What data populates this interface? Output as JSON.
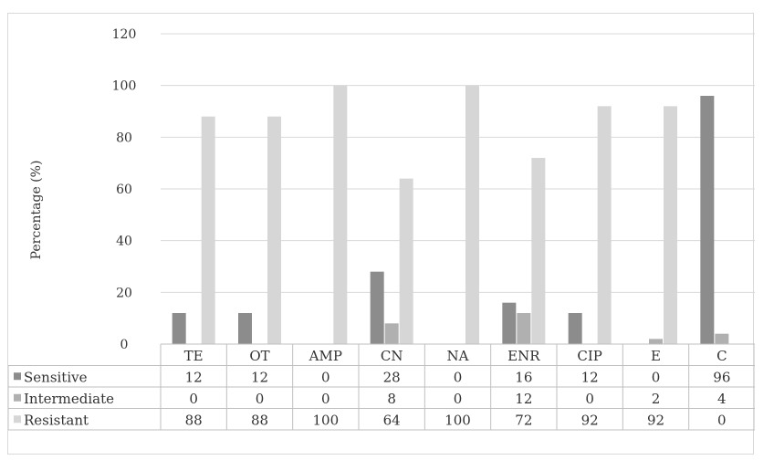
{
  "chart_data": {
    "type": "bar",
    "title": "",
    "xlabel": "",
    "ylabel": "Percentage (%)",
    "ylim": [
      0,
      120
    ],
    "yticks": [
      0,
      20,
      40,
      60,
      80,
      100,
      120
    ],
    "grid": true,
    "legend": "data-table-left",
    "categories": [
      "TE",
      "OT",
      "AMP",
      "CN",
      "NA",
      "ENR",
      "CIP",
      "E",
      "C"
    ],
    "series": [
      {
        "name": "Sensitive",
        "color": "#8c8c8c",
        "values": [
          12,
          12,
          0,
          28,
          0,
          16,
          12,
          0,
          96
        ]
      },
      {
        "name": "Intermediate",
        "color": "#b0b0b0",
        "values": [
          0,
          0,
          0,
          8,
          0,
          12,
          0,
          2,
          4
        ]
      },
      {
        "name": "Resistant",
        "color": "#d6d6d6",
        "values": [
          88,
          88,
          100,
          64,
          100,
          72,
          92,
          92,
          0
        ]
      }
    ]
  }
}
